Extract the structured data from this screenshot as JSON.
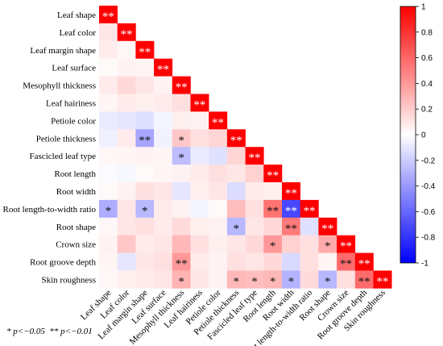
{
  "chart_data": {
    "type": "heatmap",
    "title": "",
    "variables": [
      "Leaf shape",
      "Leaf color",
      "Leaf margin shape",
      "Leaf surface",
      "Mesophyll thickness",
      "Leaf hairiness",
      "Petiole color",
      "Petiole thickness",
      "Fascicled leaf type",
      "Root length",
      "Root width",
      "Root length-to-width ratio",
      "Root shape",
      "Crown size",
      "Root groove depth",
      "Skin roughness"
    ],
    "values": [
      [
        1
      ],
      [
        0.1,
        1
      ],
      [
        0.07,
        0.03,
        1
      ],
      [
        0.02,
        0.05,
        0.04,
        1
      ],
      [
        0.08,
        0.15,
        0.1,
        0.05,
        1
      ],
      [
        0.04,
        0.08,
        0.06,
        0.08,
        0.12,
        1
      ],
      [
        -0.08,
        -0.1,
        -0.12,
        -0.04,
        0.06,
        0.05,
        1
      ],
      [
        -0.06,
        0.08,
        -0.35,
        -0.05,
        0.22,
        0.12,
        0.16,
        1
      ],
      [
        0.03,
        0.04,
        0.05,
        0.04,
        -0.26,
        -0.08,
        -0.12,
        0.16,
        1
      ],
      [
        -0.02,
        -0.03,
        0.02,
        0.04,
        0.05,
        0.08,
        0.12,
        0.1,
        0.18,
        1
      ],
      [
        0.02,
        0.05,
        0.12,
        0.1,
        -0.1,
        0.06,
        0.1,
        -0.14,
        0.08,
        0.06,
        1
      ],
      [
        -0.32,
        0.1,
        -0.28,
        0.08,
        0.05,
        -0.04,
        0.02,
        0.26,
        0.12,
        0.55,
        -0.72,
        1
      ],
      [
        0.03,
        0.1,
        0.12,
        0.08,
        0.14,
        0.06,
        0.05,
        -0.28,
        0.1,
        0.15,
        0.52,
        -0.12,
        1
      ],
      [
        0.05,
        0.22,
        0.08,
        0.1,
        0.28,
        0.12,
        0.06,
        0.1,
        0.15,
        0.4,
        0.18,
        0.12,
        0.33,
        1
      ],
      [
        0.04,
        -0.1,
        0.1,
        0.12,
        0.4,
        0.08,
        0.05,
        0.12,
        0.1,
        0.15,
        -0.15,
        0.12,
        0.04,
        0.58,
        1
      ],
      [
        0.03,
        0.06,
        0.08,
        0.1,
        0.3,
        0.1,
        0.05,
        0.28,
        0.26,
        0.28,
        -0.3,
        0.14,
        -0.28,
        0.12,
        0.58,
        1
      ]
    ],
    "significance": [
      [
        "**"
      ],
      [
        "",
        "**"
      ],
      [
        "",
        "",
        "**"
      ],
      [
        "",
        "",
        "",
        "**"
      ],
      [
        "",
        "",
        "",
        "",
        "**"
      ],
      [
        "",
        "",
        "",
        "",
        "",
        "**"
      ],
      [
        "",
        "",
        "",
        "",
        "",
        "",
        "**"
      ],
      [
        "",
        "",
        "**",
        "",
        "*",
        "",
        "",
        "**"
      ],
      [
        "",
        "",
        "",
        "",
        "*",
        "",
        "",
        "",
        "**"
      ],
      [
        "",
        "",
        "",
        "",
        "",
        "",
        "",
        "",
        "",
        "**"
      ],
      [
        "",
        "",
        "",
        "",
        "",
        "",
        "",
        "",
        "",
        "",
        "**"
      ],
      [
        "*",
        "",
        "*",
        "",
        "",
        "",
        "",
        "",
        "",
        "**",
        "**",
        "**"
      ],
      [
        "",
        "",
        "",
        "",
        "",
        "",
        "",
        "*",
        "",
        "",
        "**",
        "",
        "**"
      ],
      [
        "",
        "",
        "",
        "",
        "",
        "",
        "",
        "",
        "",
        "*",
        "",
        "",
        "*",
        "**"
      ],
      [
        "",
        "",
        "",
        "",
        "**",
        "",
        "",
        "",
        "",
        "",
        "",
        "",
        "",
        "**",
        "**"
      ],
      [
        "",
        "",
        "",
        "",
        "*",
        "",
        "",
        "*",
        "*",
        "*",
        "*",
        "",
        "*",
        "",
        "**",
        "**"
      ]
    ],
    "colorbar": {
      "min": -1,
      "max": 1,
      "ticks": [
        1,
        0.8,
        0.6,
        0.4,
        0.2,
        0,
        -0.2,
        -0.4,
        -0.6,
        -0.8,
        -1
      ],
      "colors": {
        "negative": "#0000ff",
        "zero": "#ffffff",
        "positive": "#ff0000"
      }
    }
  },
  "footnote": "* p<−0.05  ** p<−0.01"
}
